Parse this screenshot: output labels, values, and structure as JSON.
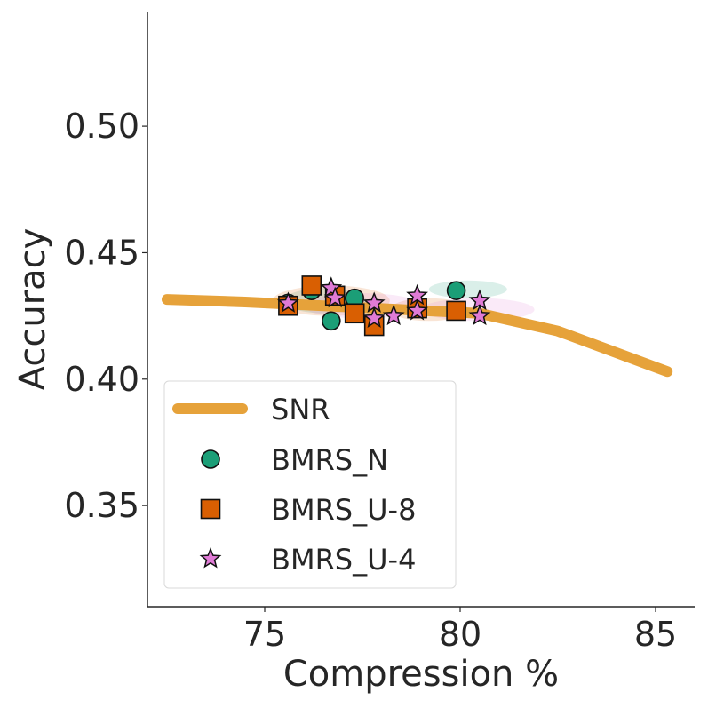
{
  "chart_data": {
    "type": "scatter",
    "title": "",
    "xlabel": "Compression %",
    "ylabel": "Accuracy",
    "xlim": [
      72,
      86
    ],
    "ylim": [
      0.31,
      0.545
    ],
    "xticks": [
      {
        "value": 75,
        "label": "75"
      },
      {
        "value": 80,
        "label": "80"
      },
      {
        "value": 85,
        "label": "85"
      }
    ],
    "yticks": [
      {
        "value": 0.35,
        "label": "0.35"
      },
      {
        "value": 0.4,
        "label": "0.40"
      },
      {
        "value": 0.45,
        "label": "0.45"
      },
      {
        "value": 0.5,
        "label": "0.50"
      }
    ],
    "grid": false,
    "legend_position": "lower-left",
    "series": [
      {
        "name": "SNR",
        "kind": "line",
        "color": "#e6a23a",
        "x": [
          72.5,
          74.5,
          76.5,
          78.5,
          80.5,
          82.5,
          85.3
        ],
        "y": [
          0.4315,
          0.4305,
          0.429,
          0.4275,
          0.426,
          0.419,
          0.403
        ]
      },
      {
        "name": "BMRS_N",
        "kind": "scatter",
        "marker": "circle",
        "color": "#1b9e77",
        "bands": [
          {
            "x": [
              75.5,
              77.6
            ],
            "y": [
              0.426,
              0.436
            ]
          },
          {
            "x": [
              79.2,
              81.2
            ],
            "y": [
              0.432,
              0.439
            ]
          }
        ],
        "x": [
          75.6,
          76.2,
          76.7,
          77.3,
          79.9
        ],
        "y": [
          0.43,
          0.435,
          0.423,
          0.432,
          0.435
        ]
      },
      {
        "name": "BMRS_U-8",
        "kind": "scatter",
        "marker": "square",
        "color": "#d95f02",
        "bands": [
          {
            "x": [
              75.2,
              78.2
            ],
            "y": [
              0.425,
              0.437
            ]
          },
          {
            "x": [
              78.2,
              80.2
            ],
            "y": [
              0.423,
              0.432
            ]
          }
        ],
        "x": [
          75.6,
          76.2,
          76.8,
          77.3,
          77.8,
          78.9,
          79.9
        ],
        "y": [
          0.429,
          0.437,
          0.433,
          0.426,
          0.421,
          0.428,
          0.427
        ]
      },
      {
        "name": "BMRS_U-4",
        "kind": "scatter",
        "marker": "star",
        "color": "#e07bd6",
        "bands": [
          {
            "x": [
              76.0,
              79.0
            ],
            "y": [
              0.424,
              0.434
            ]
          },
          {
            "x": [
              79.0,
              81.9
            ],
            "y": [
              0.423,
              0.432
            ]
          }
        ],
        "x": [
          75.6,
          76.7,
          76.8,
          77.8,
          77.8,
          78.3,
          78.9,
          78.9,
          80.5,
          80.5
        ],
        "y": [
          0.43,
          0.436,
          0.432,
          0.43,
          0.424,
          0.425,
          0.427,
          0.433,
          0.431,
          0.425
        ]
      }
    ]
  }
}
